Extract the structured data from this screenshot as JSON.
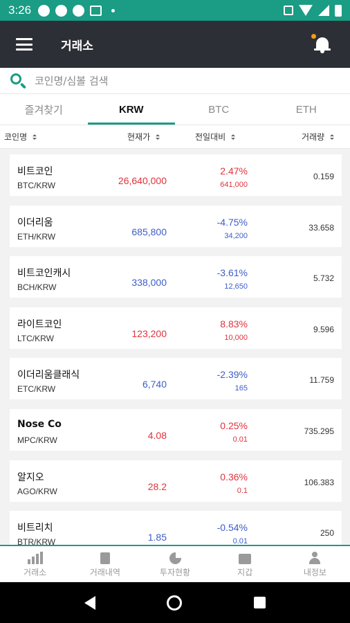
{
  "status_bar": {
    "time": "3:26"
  },
  "app_bar": {
    "title": "거래소"
  },
  "search": {
    "placeholder": "코인명/심볼 검색"
  },
  "tabs": [
    {
      "label": "즐겨찾기",
      "active": false
    },
    {
      "label": "KRW",
      "active": true
    },
    {
      "label": "BTC",
      "active": false
    },
    {
      "label": "ETH",
      "active": false
    }
  ],
  "columns": {
    "name": "코인명",
    "price": "현재가",
    "change": "전일대비",
    "volume": "거래량"
  },
  "rows": [
    {
      "name": "비트코인",
      "pair": "BTC/KRW",
      "price": "26,640,000",
      "pct": "2.47%",
      "chg": "641,000",
      "volume": "0.159",
      "direction": "up"
    },
    {
      "name": "이더리움",
      "pair": "ETH/KRW",
      "price": "685,800",
      "pct": "-4.75%",
      "chg": "34,200",
      "volume": "33.658",
      "direction": "down"
    },
    {
      "name": "비트코인캐시",
      "pair": "BCH/KRW",
      "price": "338,000",
      "pct": "-3.61%",
      "chg": "12,650",
      "volume": "5.732",
      "direction": "down"
    },
    {
      "name": "라이트코인",
      "pair": "LTC/KRW",
      "price": "123,200",
      "pct": "8.83%",
      "chg": "10,000",
      "volume": "9.596",
      "direction": "up"
    },
    {
      "name": "이더리움클래식",
      "pair": "ETC/KRW",
      "price": "6,740",
      "pct": "-2.39%",
      "chg": "165",
      "volume": "11.759",
      "direction": "down"
    },
    {
      "name": "Nose Co",
      "pair": "MPC/KRW",
      "price": "4.08",
      "pct": "0.25%",
      "chg": "0.01",
      "volume": "735.295",
      "direction": "up"
    },
    {
      "name": "알지오",
      "pair": "AGO/KRW",
      "price": "28.2",
      "pct": "0.36%",
      "chg": "0.1",
      "volume": "106.383",
      "direction": "up"
    },
    {
      "name": "비트리치",
      "pair": "BTR/KRW",
      "price": "1.85",
      "pct": "-0.54%",
      "chg": "0.01",
      "volume": "250",
      "direction": "down"
    }
  ],
  "bottom_nav": [
    {
      "label": "거래소",
      "icon": "chart-bars-icon"
    },
    {
      "label": "거래내역",
      "icon": "document-icon"
    },
    {
      "label": "투자현황",
      "icon": "pie-chart-icon"
    },
    {
      "label": "지갑",
      "icon": "wallet-icon"
    },
    {
      "label": "내정보",
      "icon": "person-icon"
    }
  ],
  "colors": {
    "accent": "#1a9c85",
    "header": "#2d2f36",
    "up": "#e0323c",
    "down": "#3d5dc9",
    "notification_dot": "#f39c12"
  }
}
